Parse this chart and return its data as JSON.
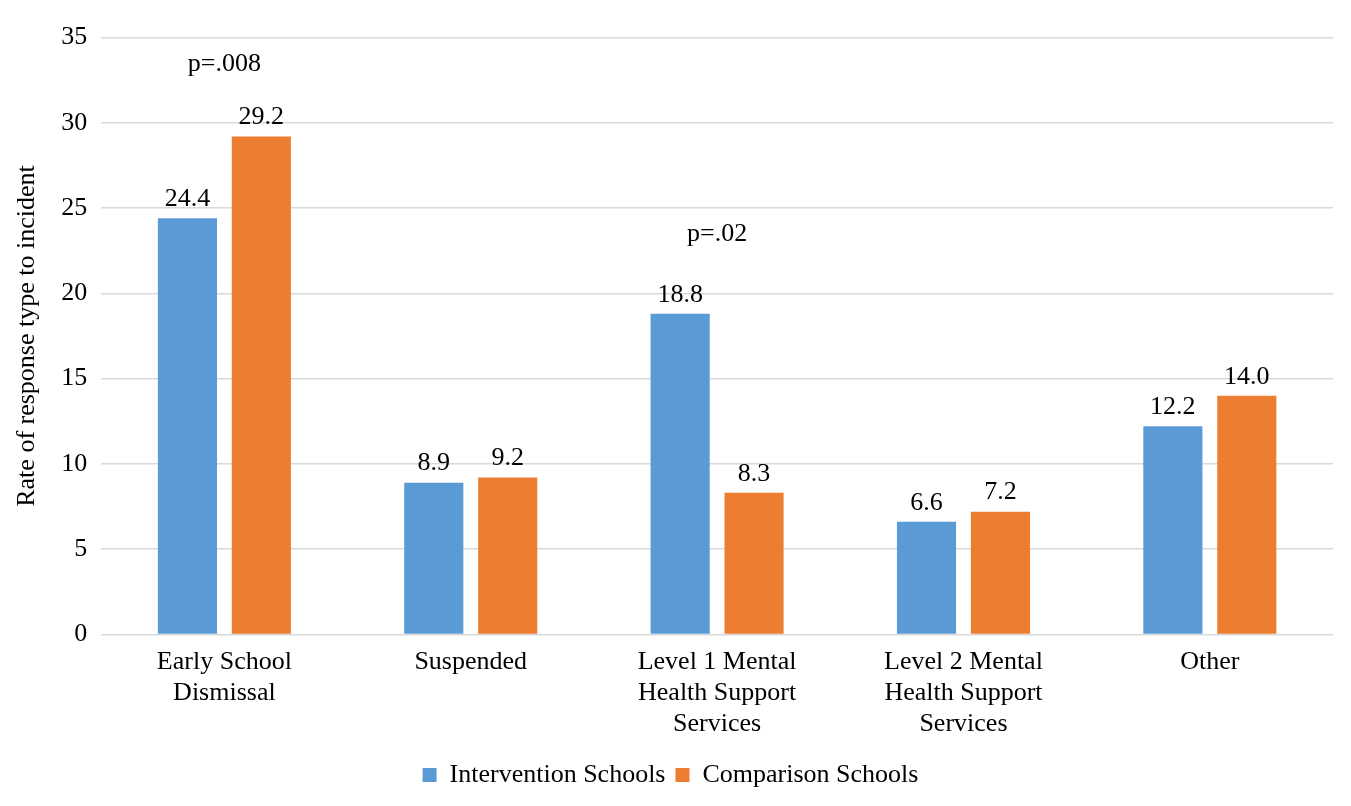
{
  "chart_data": {
    "type": "bar",
    "ylabel": "Rate of response type to incident",
    "categories": [
      "Early School Dismissal",
      "Suspended",
      "Level 1 Mental Health Support Services",
      "Level 2 Mental Health Support Services",
      "Other"
    ],
    "series": [
      {
        "name": "Intervention Schools",
        "color": "#5b9bd5",
        "values": [
          24.4,
          8.9,
          18.8,
          6.6,
          12.2
        ],
        "value_labels": [
          "24.4",
          "8.9",
          "18.8",
          "6.6",
          "12.2"
        ]
      },
      {
        "name": "Comparison Schools",
        "color": "#ed7d31",
        "values": [
          29.2,
          9.2,
          8.3,
          7.2,
          14.0
        ],
        "value_labels": [
          "29.2",
          "9.2",
          "8.3",
          "7.2",
          "14.0"
        ]
      }
    ],
    "ylim": [
      0,
      35
    ],
    "yticks": [
      0,
      5,
      10,
      15,
      20,
      25,
      30,
      35
    ],
    "grid": "y",
    "legend": "bottom",
    "annotations": [
      "p=.008",
      "p=.02"
    ]
  }
}
